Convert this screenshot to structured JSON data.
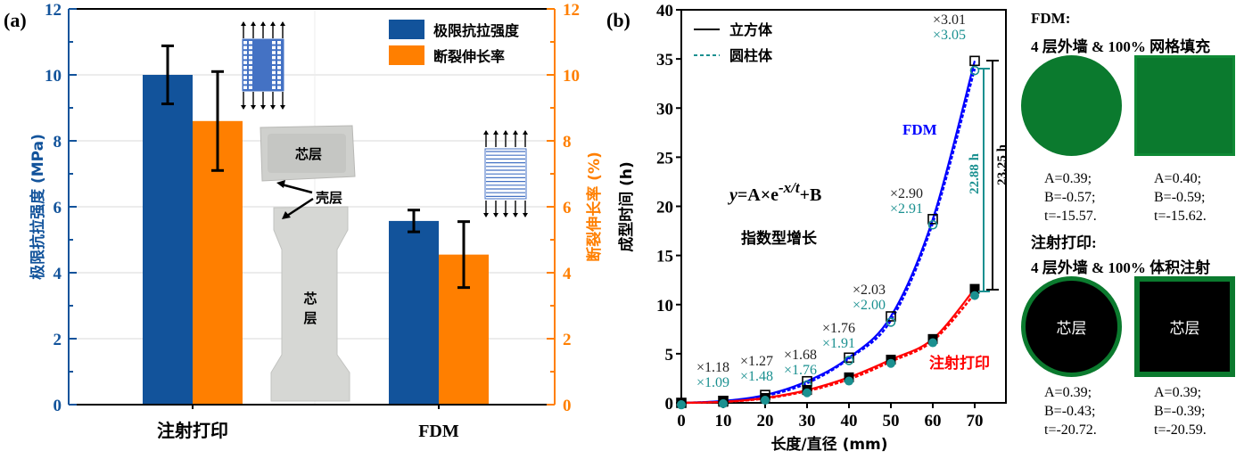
{
  "chart_data": [
    {
      "panel_label": "(a)",
      "type": "bar",
      "categories": [
        "注射打印",
        "FDM"
      ],
      "series": [
        {
          "name": "极限抗拉强度",
          "axis": "left",
          "color": "#12539B",
          "values": [
            10.0,
            5.57
          ],
          "errors": [
            0.88,
            0.33
          ]
        },
        {
          "name": "断裂伸长率",
          "axis": "right",
          "color": "#FF7F00",
          "values": [
            8.6,
            4.55
          ],
          "errors": [
            1.5,
            1.0
          ]
        }
      ],
      "ylabel_left": "极限抗拉强度 (MPa)",
      "ylabel_right": "断裂伸长率 (%)",
      "ylim_left": [
        0,
        12
      ],
      "ylim_right": [
        0,
        12
      ],
      "yticks_left": [
        "0",
        "2",
        "4",
        "6",
        "8",
        "10",
        "12"
      ],
      "yticks_right": [
        "0",
        "2",
        "4",
        "6",
        "8",
        "10",
        "12"
      ],
      "legend": [
        "极限抗拉强度",
        "断裂伸长率"
      ],
      "legend_position": "top-right",
      "grid": true,
      "annotations": {
        "photo_core_top": "芯层",
        "photo_shell": "壳层",
        "photo_core_bottom": "芯\n层"
      }
    },
    {
      "panel_label": "(b)",
      "type": "scatter",
      "xlabel": "长度/直径 (mm)",
      "ylabel": "成型时间 (h)",
      "xlim": [
        0,
        70
      ],
      "ylim": [
        0,
        40
      ],
      "xticks": [
        "0",
        "10",
        "20",
        "30",
        "40",
        "50",
        "60",
        "70"
      ],
      "yticks": [
        "0",
        "5",
        "10",
        "15",
        "20",
        "25",
        "30",
        "35",
        "40"
      ],
      "legend": [
        {
          "label": "立方体",
          "style": "solid",
          "color": "#000000"
        },
        {
          "label": "圆柱体",
          "style": "dashed",
          "color": "#1A9090"
        }
      ],
      "legend_position": "top-left",
      "equation": {
        "prefix": "y",
        "eq": "=A×e",
        "sup": "-x/t",
        "suffix": "+B"
      },
      "equation_note": "指数型增长",
      "x": [
        0,
        10,
        20,
        30,
        40,
        50,
        60,
        70
      ],
      "series": [
        {
          "name": "FDM 立方体",
          "color": "#0000FF",
          "marker": "open-square",
          "values": [
            0,
            0.2,
            0.8,
            2.2,
            4.6,
            8.8,
            18.7,
            34.8
          ]
        },
        {
          "name": "FDM 圆柱体",
          "color": "#0000FF",
          "marker": "open-circle",
          "values": [
            0,
            0.15,
            0.7,
            2.0,
            4.5,
            8.4,
            18.3,
            34.0
          ]
        },
        {
          "name": "注射打印 立方体",
          "color": "#FF0000",
          "marker": "filled-square",
          "values": [
            0,
            0.1,
            0.5,
            1.3,
            2.6,
            4.4,
            6.5,
            11.6
          ]
        },
        {
          "name": "注射打印 圆柱体",
          "color": "#FF0000",
          "marker": "filled-circle",
          "values": [
            0,
            0.1,
            0.45,
            1.2,
            2.4,
            4.2,
            6.3,
            11.1
          ]
        }
      ],
      "curve_labels": {
        "fdm": "FDM",
        "injection": "注射打印"
      },
      "ratio_labels_cube": [
        "×1.18",
        "×1.27",
        "×1.68",
        "×1.76",
        "×2.03",
        "×2.90",
        "×3.01"
      ],
      "ratio_labels_cylinder": [
        "×1.09",
        "×1.48",
        "×1.76",
        "×1.91",
        "×2.00",
        "×2.91",
        "×3.05"
      ],
      "difference_labels": {
        "cylinder": "22.88 h",
        "cube": "23.25 h"
      }
    }
  ],
  "right_panel": {
    "fdm_header": "FDM:",
    "fdm_sub": "4 层外墙 & 100% 网格填充",
    "fdm_params": [
      {
        "A": "A=0.39;",
        "B": "B=-0.57;",
        "t": "t=-15.57."
      },
      {
        "A": "A=0.40;",
        "B": "B=-0.59;",
        "t": "t=-15.62."
      }
    ],
    "inj_header": "注射打印:",
    "inj_sub": "4 层外墙 & 100% 体积注射",
    "inj_core_label": "芯层",
    "inj_params": [
      {
        "A": "A=0.39;",
        "B": "B=-0.43;",
        "t": "t=-20.72."
      },
      {
        "A": "A=0.39;",
        "B": "B=-0.39;",
        "t": "t=-20.59."
      }
    ],
    "colors": {
      "green": "#0B7A2E",
      "core": "#000000"
    }
  }
}
